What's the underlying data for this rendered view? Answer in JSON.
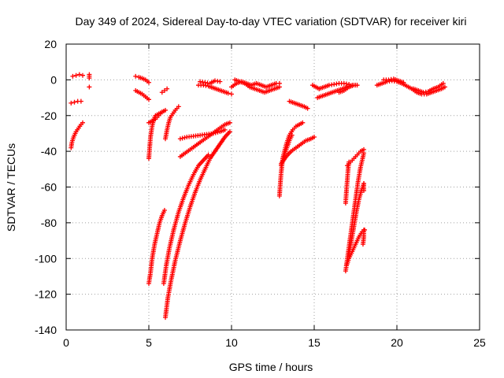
{
  "chart_data": {
    "type": "scatter",
    "title": "Day 349 of 2024, Sidereal Day-to-day VTEC variation (SDTVAR) for receiver kiri",
    "xlabel": "GPS time / hours",
    "ylabel": "SDTVAR / TECUs",
    "xlim": [
      0,
      25
    ],
    "ylim": [
      -140,
      20
    ],
    "xticks": [
      0,
      5,
      10,
      15,
      20,
      25
    ],
    "yticks": [
      20,
      0,
      -20,
      -40,
      -60,
      -80,
      -100,
      -120,
      -140
    ],
    "grid": true,
    "marker_color": "#ff0000",
    "marker": "plus",
    "series": [
      {
        "segments": [
          [
            [
              0.3,
              -38
            ],
            [
              0.35,
              -35
            ],
            [
              0.45,
              -32
            ],
            [
              0.6,
              -29
            ],
            [
              0.75,
              -27
            ],
            [
              0.9,
              -25
            ],
            [
              1.0,
              -24
            ]
          ],
          [
            [
              0.3,
              -13
            ],
            [
              0.5,
              -12.5
            ],
            [
              0.7,
              -12
            ],
            [
              0.9,
              -12
            ]
          ],
          [
            [
              0.4,
              2
            ],
            [
              0.6,
              2.5
            ],
            [
              0.8,
              3
            ],
            [
              1.0,
              2.5
            ]
          ],
          [
            [
              1.4,
              3
            ],
            [
              1.4,
              1
            ]
          ],
          [
            [
              1.4,
              -4
            ]
          ],
          [
            [
              4.2,
              2
            ],
            [
              4.4,
              1.5
            ],
            [
              4.6,
              0.8
            ],
            [
              4.8,
              0
            ],
            [
              5.0,
              -1.5
            ]
          ],
          [
            [
              4.2,
              -6
            ],
            [
              4.4,
              -7
            ],
            [
              4.6,
              -8
            ],
            [
              4.8,
              -9.5
            ],
            [
              5.0,
              -11
            ]
          ],
          [
            [
              5.8,
              -7
            ],
            [
              5.95,
              -6
            ],
            [
              6.1,
              -5
            ]
          ],
          [
            [
              5.0,
              -44
            ],
            [
              5.05,
              -38
            ],
            [
              5.1,
              -32
            ],
            [
              5.2,
              -26
            ],
            [
              5.3,
              -22
            ],
            [
              5.4,
              -20
            ],
            [
              5.6,
              -19
            ],
            [
              5.8,
              -18
            ]
          ],
          [
            [
              5.0,
              -24
            ],
            [
              5.2,
              -23
            ],
            [
              5.4,
              -22
            ],
            [
              5.6,
              -20
            ],
            [
              5.8,
              -18
            ],
            [
              6.0,
              -17
            ]
          ],
          [
            [
              6.0,
              -33
            ],
            [
              6.1,
              -28
            ],
            [
              6.2,
              -24
            ],
            [
              6.3,
              -21
            ],
            [
              6.45,
              -19
            ],
            [
              6.6,
              -17
            ],
            [
              6.8,
              -15
            ]
          ],
          [
            [
              5.0,
              -114
            ],
            [
              5.1,
              -108
            ],
            [
              5.2,
              -100
            ],
            [
              5.35,
              -92
            ],
            [
              5.5,
              -86
            ],
            [
              5.65,
              -80
            ],
            [
              5.8,
              -76
            ],
            [
              5.95,
              -73
            ]
          ],
          [
            [
              5.9,
              -114
            ],
            [
              6.05,
              -104
            ],
            [
              6.25,
              -94
            ],
            [
              6.5,
              -84
            ],
            [
              6.8,
              -74
            ],
            [
              7.1,
              -66
            ],
            [
              7.4,
              -59
            ],
            [
              7.7,
              -53
            ],
            [
              8.0,
              -48
            ],
            [
              8.3,
              -45
            ],
            [
              8.6,
              -42
            ]
          ],
          [
            [
              6.0,
              -133
            ],
            [
              6.15,
              -122
            ],
            [
              6.35,
              -112
            ],
            [
              6.6,
              -101
            ],
            [
              6.9,
              -90
            ],
            [
              7.2,
              -80
            ],
            [
              7.5,
              -71
            ],
            [
              7.8,
              -63
            ],
            [
              8.1,
              -56
            ],
            [
              8.4,
              -50
            ],
            [
              8.7,
              -44
            ],
            [
              9.0,
              -40
            ],
            [
              9.3,
              -36
            ],
            [
              9.6,
              -32
            ],
            [
              9.9,
              -29
            ]
          ],
          [
            [
              6.9,
              -43
            ],
            [
              7.2,
              -41
            ],
            [
              7.5,
              -39
            ],
            [
              7.8,
              -37
            ],
            [
              8.1,
              -35
            ],
            [
              8.4,
              -33
            ],
            [
              8.7,
              -31
            ],
            [
              9.0,
              -29
            ],
            [
              9.3,
              -27
            ],
            [
              9.6,
              -25
            ],
            [
              9.9,
              -24
            ]
          ],
          [
            [
              6.9,
              -33
            ],
            [
              7.3,
              -32
            ],
            [
              7.7,
              -31.5
            ],
            [
              8.1,
              -31
            ],
            [
              8.5,
              -30.5
            ],
            [
              8.9,
              -30
            ],
            [
              9.3,
              -29
            ],
            [
              9.6,
              -28
            ]
          ],
          [
            [
              8.0,
              -3
            ],
            [
              8.3,
              -3
            ],
            [
              8.6,
              -3.5
            ],
            [
              8.9,
              -4.5
            ],
            [
              9.2,
              -5.5
            ],
            [
              9.5,
              -6.5
            ],
            [
              9.8,
              -7.5
            ],
            [
              10.0,
              -8
            ]
          ],
          [
            [
              8.1,
              -1
            ],
            [
              8.4,
              -1.5
            ],
            [
              8.7,
              -2
            ],
            [
              9.0,
              -0.5
            ],
            [
              9.3,
              -1
            ]
          ],
          [
            [
              10.0,
              -4
            ],
            [
              10.3,
              -2
            ],
            [
              10.6,
              -1
            ],
            [
              10.9,
              -2
            ],
            [
              11.2,
              -3
            ],
            [
              11.5,
              -2
            ],
            [
              11.8,
              -3
            ],
            [
              12.1,
              -4
            ],
            [
              12.4,
              -3
            ],
            [
              12.7,
              -2
            ],
            [
              12.9,
              -2
            ]
          ],
          [
            [
              10.2,
              0
            ],
            [
              10.5,
              -1
            ],
            [
              10.8,
              -2
            ],
            [
              11.1,
              -4
            ],
            [
              11.4,
              -5
            ],
            [
              11.7,
              -6
            ],
            [
              12.0,
              -7
            ],
            [
              12.3,
              -6
            ],
            [
              12.6,
              -5
            ],
            [
              12.9,
              -4
            ]
          ],
          [
            [
              13.5,
              -12
            ],
            [
              13.8,
              -13
            ],
            [
              14.1,
              -14
            ],
            [
              14.4,
              -15
            ],
            [
              14.6,
              -16
            ]
          ],
          [
            [
              12.9,
              -65
            ],
            [
              12.95,
              -58
            ],
            [
              13.0,
              -52
            ],
            [
              13.05,
              -48
            ],
            [
              13.1,
              -44
            ],
            [
              13.2,
              -40
            ],
            [
              13.35,
              -35
            ],
            [
              13.5,
              -31
            ],
            [
              13.7,
              -28
            ],
            [
              13.9,
              -26
            ],
            [
              14.1,
              -25
            ],
            [
              14.3,
              -24
            ]
          ],
          [
            [
              13.0,
              -47
            ],
            [
              13.3,
              -43
            ],
            [
              13.6,
              -40
            ],
            [
              13.9,
              -38
            ],
            [
              14.2,
              -36
            ],
            [
              14.5,
              -34
            ],
            [
              14.8,
              -33
            ],
            [
              15.0,
              -32
            ]
          ],
          [
            [
              13.0,
              -48
            ],
            [
              13.1,
              -45
            ],
            [
              13.2,
              -42
            ],
            [
              13.35,
              -38
            ],
            [
              13.5,
              -34
            ],
            [
              13.65,
              -31
            ]
          ],
          [
            [
              14.9,
              -3
            ],
            [
              15.1,
              -4
            ],
            [
              15.3,
              -5
            ]
          ],
          [
            [
              15.2,
              -10
            ],
            [
              15.5,
              -9
            ],
            [
              15.8,
              -8
            ],
            [
              16.1,
              -7
            ],
            [
              16.4,
              -6
            ],
            [
              16.7,
              -5
            ],
            [
              17.0,
              -4
            ],
            [
              17.3,
              -3
            ],
            [
              17.5,
              -3
            ]
          ],
          [
            [
              15.3,
              -5
            ],
            [
              15.6,
              -4
            ],
            [
              15.9,
              -3
            ],
            [
              16.2,
              -2.5
            ],
            [
              16.5,
              -2
            ],
            [
              16.8,
              -2
            ],
            [
              17.1,
              -2.5
            ]
          ],
          [
            [
              16.5,
              -7
            ],
            [
              16.8,
              -6
            ],
            [
              17.1,
              -4
            ],
            [
              17.4,
              -3
            ],
            [
              17.6,
              -3
            ]
          ],
          [
            [
              16.9,
              -69
            ],
            [
              16.95,
              -62
            ],
            [
              17.0,
              -56
            ],
            [
              17.05,
              -50
            ],
            [
              17.1,
              -46
            ]
          ],
          [
            [
              17.0,
              -48
            ],
            [
              17.2,
              -46
            ],
            [
              17.4,
              -44
            ],
            [
              17.6,
              -42
            ],
            [
              17.8,
              -40
            ],
            [
              18.0,
              -39
            ]
          ],
          [
            [
              16.9,
              -107
            ],
            [
              17.05,
              -97
            ],
            [
              17.2,
              -87
            ],
            [
              17.35,
              -77
            ],
            [
              17.5,
              -67
            ],
            [
              17.65,
              -57
            ],
            [
              17.8,
              -49
            ],
            [
              17.95,
              -43
            ],
            [
              18.0,
              -41
            ]
          ],
          [
            [
              16.95,
              -104
            ],
            [
              17.1,
              -100
            ],
            [
              17.3,
              -96
            ],
            [
              17.5,
              -92
            ],
            [
              17.7,
              -88
            ],
            [
              17.9,
              -85
            ],
            [
              18.05,
              -84
            ]
          ],
          [
            [
              17.1,
              -98
            ],
            [
              17.25,
              -90
            ],
            [
              17.4,
              -82
            ],
            [
              17.55,
              -74
            ],
            [
              17.7,
              -67
            ],
            [
              17.85,
              -62
            ],
            [
              18.0,
              -58
            ]
          ],
          [
            [
              18.0,
              -84
            ],
            [
              18.0,
              -88
            ],
            [
              17.95,
              -92
            ]
          ],
          [
            [
              18.0,
              -58
            ],
            [
              18.0,
              -62
            ]
          ],
          [
            [
              18.8,
              -3
            ],
            [
              19.1,
              -2
            ],
            [
              19.4,
              -1
            ],
            [
              19.7,
              -0.5
            ],
            [
              20.0,
              -1
            ],
            [
              20.3,
              -2
            ],
            [
              20.6,
              -3.5
            ],
            [
              20.9,
              -5
            ],
            [
              21.2,
              -7
            ],
            [
              21.5,
              -8
            ],
            [
              21.8,
              -8
            ],
            [
              22.1,
              -7
            ],
            [
              22.4,
              -6
            ],
            [
              22.7,
              -5
            ],
            [
              22.9,
              -4
            ]
          ],
          [
            [
              19.2,
              0
            ],
            [
              19.5,
              0
            ],
            [
              19.8,
              0.5
            ],
            [
              20.1,
              -0.5
            ],
            [
              20.4,
              -1.5
            ]
          ],
          [
            [
              21.0,
              -5
            ],
            [
              21.3,
              -6
            ],
            [
              21.6,
              -7
            ],
            [
              21.9,
              -6.5
            ],
            [
              22.2,
              -5
            ],
            [
              22.5,
              -4
            ],
            [
              22.8,
              -2
            ]
          ]
        ]
      }
    ]
  }
}
